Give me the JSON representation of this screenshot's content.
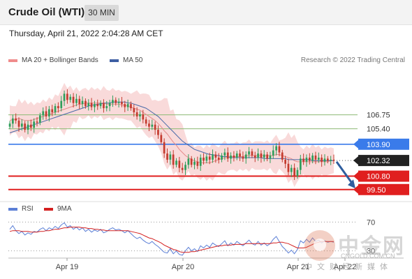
{
  "header": {
    "title": "Crude Oil (WTI)",
    "interval": "30 MIN"
  },
  "datetime": "Thursday, April 21, 2022 2:04:28 AM CET",
  "legend": {
    "bollinger": "MA 20 + Bollinger Bands",
    "ma50": "MA 50",
    "credit": "Research © 2022 Trading Central"
  },
  "rsi_legend": {
    "rsi": "RSI",
    "ma9": "9MA"
  },
  "colors": {
    "bull": "#2f9e5b",
    "bear": "#c43b2e",
    "band": "#f8d4d4",
    "ma20": "#e58a8a",
    "ma50": "#4a6aa8",
    "resistance": "#3a7bea",
    "support": "#e01f1f",
    "pivot": "#222222",
    "fib": "#8dba74",
    "arrow": "#2e5d9e"
  },
  "watermark": {
    "name": "中金网",
    "url": "CNGOLD.COM.CN",
    "subtitle": "中文财经新媒体"
  },
  "chart_data": [
    {
      "type": "candlestick",
      "title": "Crude Oil (WTI)",
      "x_ticks": [
        "Apr 19",
        "Apr 20",
        "Apr 21",
        "Apr 22"
      ],
      "y_range": [
        98.4,
        111.4
      ],
      "levels": [
        {
          "value": 106.75,
          "label": "106.75",
          "kind": "target"
        },
        {
          "value": 105.4,
          "label": "105.40",
          "kind": "target"
        },
        {
          "value": 103.9,
          "label": "103.90",
          "kind": "resistance"
        },
        {
          "value": 102.32,
          "label": "102.32",
          "kind": "pivot"
        },
        {
          "value": 100.8,
          "label": "100.80",
          "kind": "support"
        },
        {
          "value": 99.5,
          "label": "99.50",
          "kind": "support"
        }
      ],
      "candles_close": [
        105.9,
        106.4,
        106.2,
        105.6,
        105.9,
        105.3,
        105.8,
        105.5,
        106.1,
        106.0,
        106.7,
        107.1,
        106.6,
        107.3,
        107.0,
        107.6,
        107.4,
        108.1,
        108.8,
        108.2,
        108.5,
        107.9,
        108.3,
        107.8,
        108.1,
        107.6,
        107.9,
        107.5,
        107.8,
        107.6,
        107.9,
        107.4,
        107.6,
        107.9,
        108.2,
        107.9,
        108.0,
        107.8,
        107.5,
        107.8,
        107.4,
        107.0,
        106.6,
        106.8,
        106.3,
        105.9,
        105.6,
        105.8,
        105.3,
        104.8,
        104.1,
        103.0,
        102.4,
        102.9,
        101.9,
        102.3,
        101.6,
        101.4,
        101.9,
        102.5,
        101.9,
        102.2,
        101.8,
        102.6,
        102.3,
        102.7,
        102.4,
        102.9,
        102.6,
        102.4,
        102.8,
        103.1,
        102.5,
        102.8,
        102.6,
        103.0,
        102.7,
        102.5,
        102.9,
        103.2,
        102.8,
        102.6,
        103.0,
        102.6,
        102.9,
        102.5,
        102.8,
        103.3,
        103.7,
        103.1,
        102.4,
        102.0,
        101.2,
        101.6,
        100.8,
        101.4,
        102.5,
        102.2,
        102.6,
        102.3,
        102.8,
        102.4,
        102.6,
        102.2,
        102.5,
        102.3,
        102.4,
        102.3
      ],
      "ma20": [
        106.2,
        106.3,
        106.3,
        106.4,
        106.3,
        106.2,
        106.2,
        106.2,
        106.3,
        106.4,
        106.5,
        106.6,
        106.7,
        106.8,
        106.9,
        107.0,
        107.1,
        107.2,
        107.3,
        107.4,
        107.5,
        107.6,
        107.7,
        107.8,
        107.8,
        107.9,
        107.9,
        107.9,
        107.9,
        107.9,
        107.9,
        107.9,
        107.8,
        107.8,
        107.8,
        107.8,
        107.8,
        107.7,
        107.7,
        107.6,
        107.5,
        107.4,
        107.3,
        107.2,
        107.0,
        106.8,
        106.6,
        106.4,
        106.2,
        105.9,
        105.6,
        105.2,
        104.9,
        104.5,
        104.1,
        103.8,
        103.4,
        103.1,
        102.8,
        102.6,
        102.4,
        102.3,
        102.2,
        102.1,
        102.1,
        102.1,
        102.1,
        102.2,
        102.3,
        102.4,
        102.5,
        102.6,
        102.6,
        102.7,
        102.7,
        102.7,
        102.7,
        102.7,
        102.8,
        102.8,
        102.8,
        102.8,
        102.8,
        102.8,
        102.8,
        102.8,
        102.8,
        102.8,
        102.9,
        102.9,
        102.8,
        102.7,
        102.6,
        102.5,
        102.3,
        102.2,
        102.2,
        102.2,
        102.2,
        102.2,
        102.2,
        102.2,
        102.2,
        102.2,
        102.2,
        102.2,
        102.3,
        102.3
      ],
      "ma50": [
        105.0,
        105.1,
        105.2,
        105.3,
        105.4,
        105.5,
        105.6,
        105.7,
        105.8,
        105.9,
        106.0,
        106.1,
        106.2,
        106.3,
        106.4,
        106.5,
        106.6,
        106.7,
        106.8,
        106.9,
        107.0,
        107.1,
        107.2,
        107.3,
        107.4,
        107.5,
        107.6,
        107.7,
        107.7,
        107.8,
        107.8,
        107.9,
        107.9,
        107.9,
        108.0,
        108.0,
        108.0,
        108.0,
        108.0,
        107.9,
        107.9,
        107.8,
        107.7,
        107.6,
        107.5,
        107.4,
        107.2,
        107.0,
        106.8,
        106.6,
        106.3,
        106.0,
        105.7,
        105.4,
        105.1,
        104.8,
        104.5,
        104.2,
        104.0,
        103.8,
        103.6,
        103.4,
        103.3,
        103.2,
        103.1,
        103.0,
        102.9,
        102.9,
        102.8,
        102.8,
        102.7,
        102.7,
        102.7,
        102.6,
        102.6,
        102.6,
        102.6,
        102.6,
        102.6,
        102.6,
        102.6,
        102.6,
        102.6,
        102.6,
        102.5,
        102.5,
        102.5,
        102.5,
        102.5,
        102.5,
        102.5,
        102.5,
        102.4,
        102.4,
        102.4,
        102.4,
        102.4,
        102.4,
        102.4,
        102.4,
        102.3,
        102.3,
        102.3,
        102.3,
        102.3,
        102.3,
        102.3,
        102.3
      ]
    },
    {
      "type": "line",
      "title": "RSI",
      "y_range": [
        20,
        80
      ],
      "y_ticks": [
        {
          "value": 70,
          "label": "70"
        },
        {
          "value": 30,
          "label": "30"
        }
      ],
      "series": [
        {
          "name": "RSI",
          "values": [
            60,
            65,
            58,
            54,
            57,
            52,
            55,
            53,
            57,
            56,
            60,
            62,
            58,
            62,
            60,
            64,
            61,
            66,
            69,
            63,
            65,
            60,
            63,
            59,
            62,
            57,
            60,
            56,
            59,
            57,
            60,
            55,
            57,
            60,
            62,
            59,
            60,
            58,
            55,
            58,
            54,
            50,
            47,
            49,
            45,
            42,
            40,
            43,
            39,
            36,
            32,
            28,
            27,
            33,
            26,
            30,
            25,
            24,
            30,
            35,
            30,
            33,
            29,
            37,
            34,
            38,
            35,
            41,
            38,
            36,
            40,
            44,
            37,
            41,
            38,
            43,
            40,
            37,
            41,
            45,
            40,
            38,
            43,
            38,
            41,
            37,
            40,
            46,
            50,
            43,
            36,
            32,
            27,
            31,
            26,
            32,
            44,
            41,
            46,
            42,
            48,
            43,
            45,
            41,
            44,
            42,
            43,
            42
          ]
        },
        {
          "name": "9MA",
          "values": [
            57,
            58,
            58,
            58,
            57,
            57,
            57,
            56,
            56,
            56,
            57,
            57,
            58,
            58,
            59,
            60,
            60,
            61,
            62,
            62,
            63,
            63,
            63,
            63,
            62,
            62,
            61,
            61,
            60,
            60,
            59,
            59,
            58,
            58,
            58,
            58,
            58,
            58,
            58,
            58,
            57,
            56,
            55,
            54,
            52,
            50,
            48,
            47,
            45,
            43,
            41,
            38,
            36,
            34,
            32,
            31,
            29,
            28,
            28,
            28,
            29,
            29,
            30,
            31,
            32,
            33,
            34,
            35,
            36,
            37,
            37,
            38,
            38,
            38,
            39,
            39,
            39,
            39,
            40,
            40,
            40,
            40,
            40,
            40,
            40,
            40,
            40,
            41,
            41,
            42,
            42,
            41,
            40,
            38,
            36,
            34,
            34,
            34,
            35,
            37,
            39,
            41,
            42,
            43,
            43,
            43,
            43,
            43
          ]
        }
      ]
    }
  ]
}
